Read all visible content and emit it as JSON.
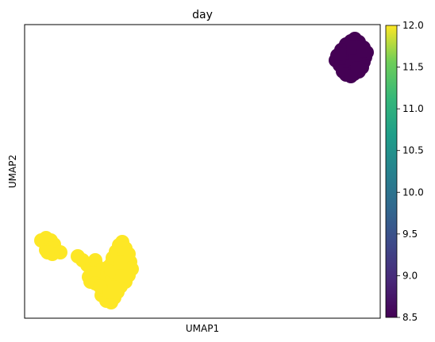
{
  "chart_data": {
    "type": "scatter",
    "title": "day",
    "xlabel": "UMAP1",
    "ylabel": "UMAP2",
    "x_ticks_shown": false,
    "y_ticks_shown": false,
    "grid": false,
    "colormap": "viridis",
    "colorbar": {
      "vmin": 8.5,
      "vmax": 12.0,
      "ticks": [
        8.5,
        9.0,
        9.5,
        10.0,
        10.5,
        11.0,
        11.5,
        12.0
      ],
      "tick_labels": [
        "8.5",
        "9.0",
        "9.5",
        "10.0",
        "10.5",
        "11.0",
        "11.5",
        "12.0"
      ]
    },
    "clusters": [
      {
        "day": 8.5,
        "color": "#440154",
        "points": [
          [
            434,
            60
          ],
          [
            440,
            58
          ],
          [
            446,
            55
          ],
          [
            452,
            53
          ],
          [
            447,
            49
          ],
          [
            442,
            52
          ],
          [
            436,
            56
          ],
          [
            430,
            63
          ],
          [
            425,
            70
          ],
          [
            423,
            76
          ],
          [
            428,
            82
          ],
          [
            434,
            88
          ],
          [
            440,
            92
          ],
          [
            446,
            93
          ],
          [
            452,
            90
          ],
          [
            456,
            85
          ],
          [
            458,
            78
          ],
          [
            460,
            72
          ],
          [
            462,
            66
          ],
          [
            458,
            60
          ],
          [
            452,
            62
          ],
          [
            446,
            66
          ],
          [
            440,
            70
          ],
          [
            434,
            74
          ],
          [
            430,
            79
          ],
          [
            436,
            82
          ],
          [
            442,
            84
          ],
          [
            448,
            80
          ],
          [
            452,
            74
          ],
          [
            454,
            68
          ],
          [
            444,
            74
          ],
          [
            438,
            66
          ],
          [
            448,
            70
          ],
          [
            432,
            90
          ],
          [
            455,
            60
          ],
          [
            445,
            60
          ],
          [
            428,
            68
          ],
          [
            436,
            94
          ],
          [
            442,
            96
          ],
          [
            450,
            86
          ],
          [
            458,
            64
          ]
        ]
      },
      {
        "day": 12.0,
        "color": "#fde725",
        "points": [
          [
            52,
            303
          ],
          [
            58,
            300
          ],
          [
            64,
            303
          ],
          [
            68,
            308
          ],
          [
            64,
            313
          ],
          [
            58,
            315
          ],
          [
            70,
            316
          ],
          [
            76,
            318
          ],
          [
            66,
            320
          ],
          [
            60,
            318
          ],
          [
            98,
            323
          ],
          [
            104,
            328
          ],
          [
            110,
            334
          ],
          [
            116,
            333
          ],
          [
            120,
            328
          ],
          [
            122,
            335
          ],
          [
            126,
            341
          ],
          [
            132,
            347
          ],
          [
            136,
            337
          ],
          [
            140,
            333
          ],
          [
            142,
            325
          ],
          [
            146,
            317
          ],
          [
            150,
            309
          ],
          [
            154,
            305
          ],
          [
            158,
            313
          ],
          [
            162,
            320
          ],
          [
            164,
            330
          ],
          [
            166,
            339
          ],
          [
            162,
            347
          ],
          [
            158,
            355
          ],
          [
            152,
            361
          ],
          [
            148,
            368
          ],
          [
            144,
            375
          ],
          [
            140,
            381
          ],
          [
            134,
            379
          ],
          [
            128,
            372
          ],
          [
            130,
            365
          ],
          [
            136,
            359
          ],
          [
            142,
            353
          ],
          [
            146,
            345
          ],
          [
            150,
            336
          ],
          [
            154,
            327
          ],
          [
            148,
            322
          ],
          [
            140,
            343
          ],
          [
            132,
            356
          ],
          [
            124,
            349
          ],
          [
            118,
            344
          ],
          [
            112,
            349
          ],
          [
            114,
            355
          ],
          [
            120,
            357
          ],
          [
            126,
            361
          ],
          [
            138,
            368
          ],
          [
            144,
            362
          ],
          [
            154,
            347
          ],
          [
            160,
            338
          ],
          [
            156,
            319
          ],
          [
            152,
            331
          ]
        ]
      }
    ]
  }
}
